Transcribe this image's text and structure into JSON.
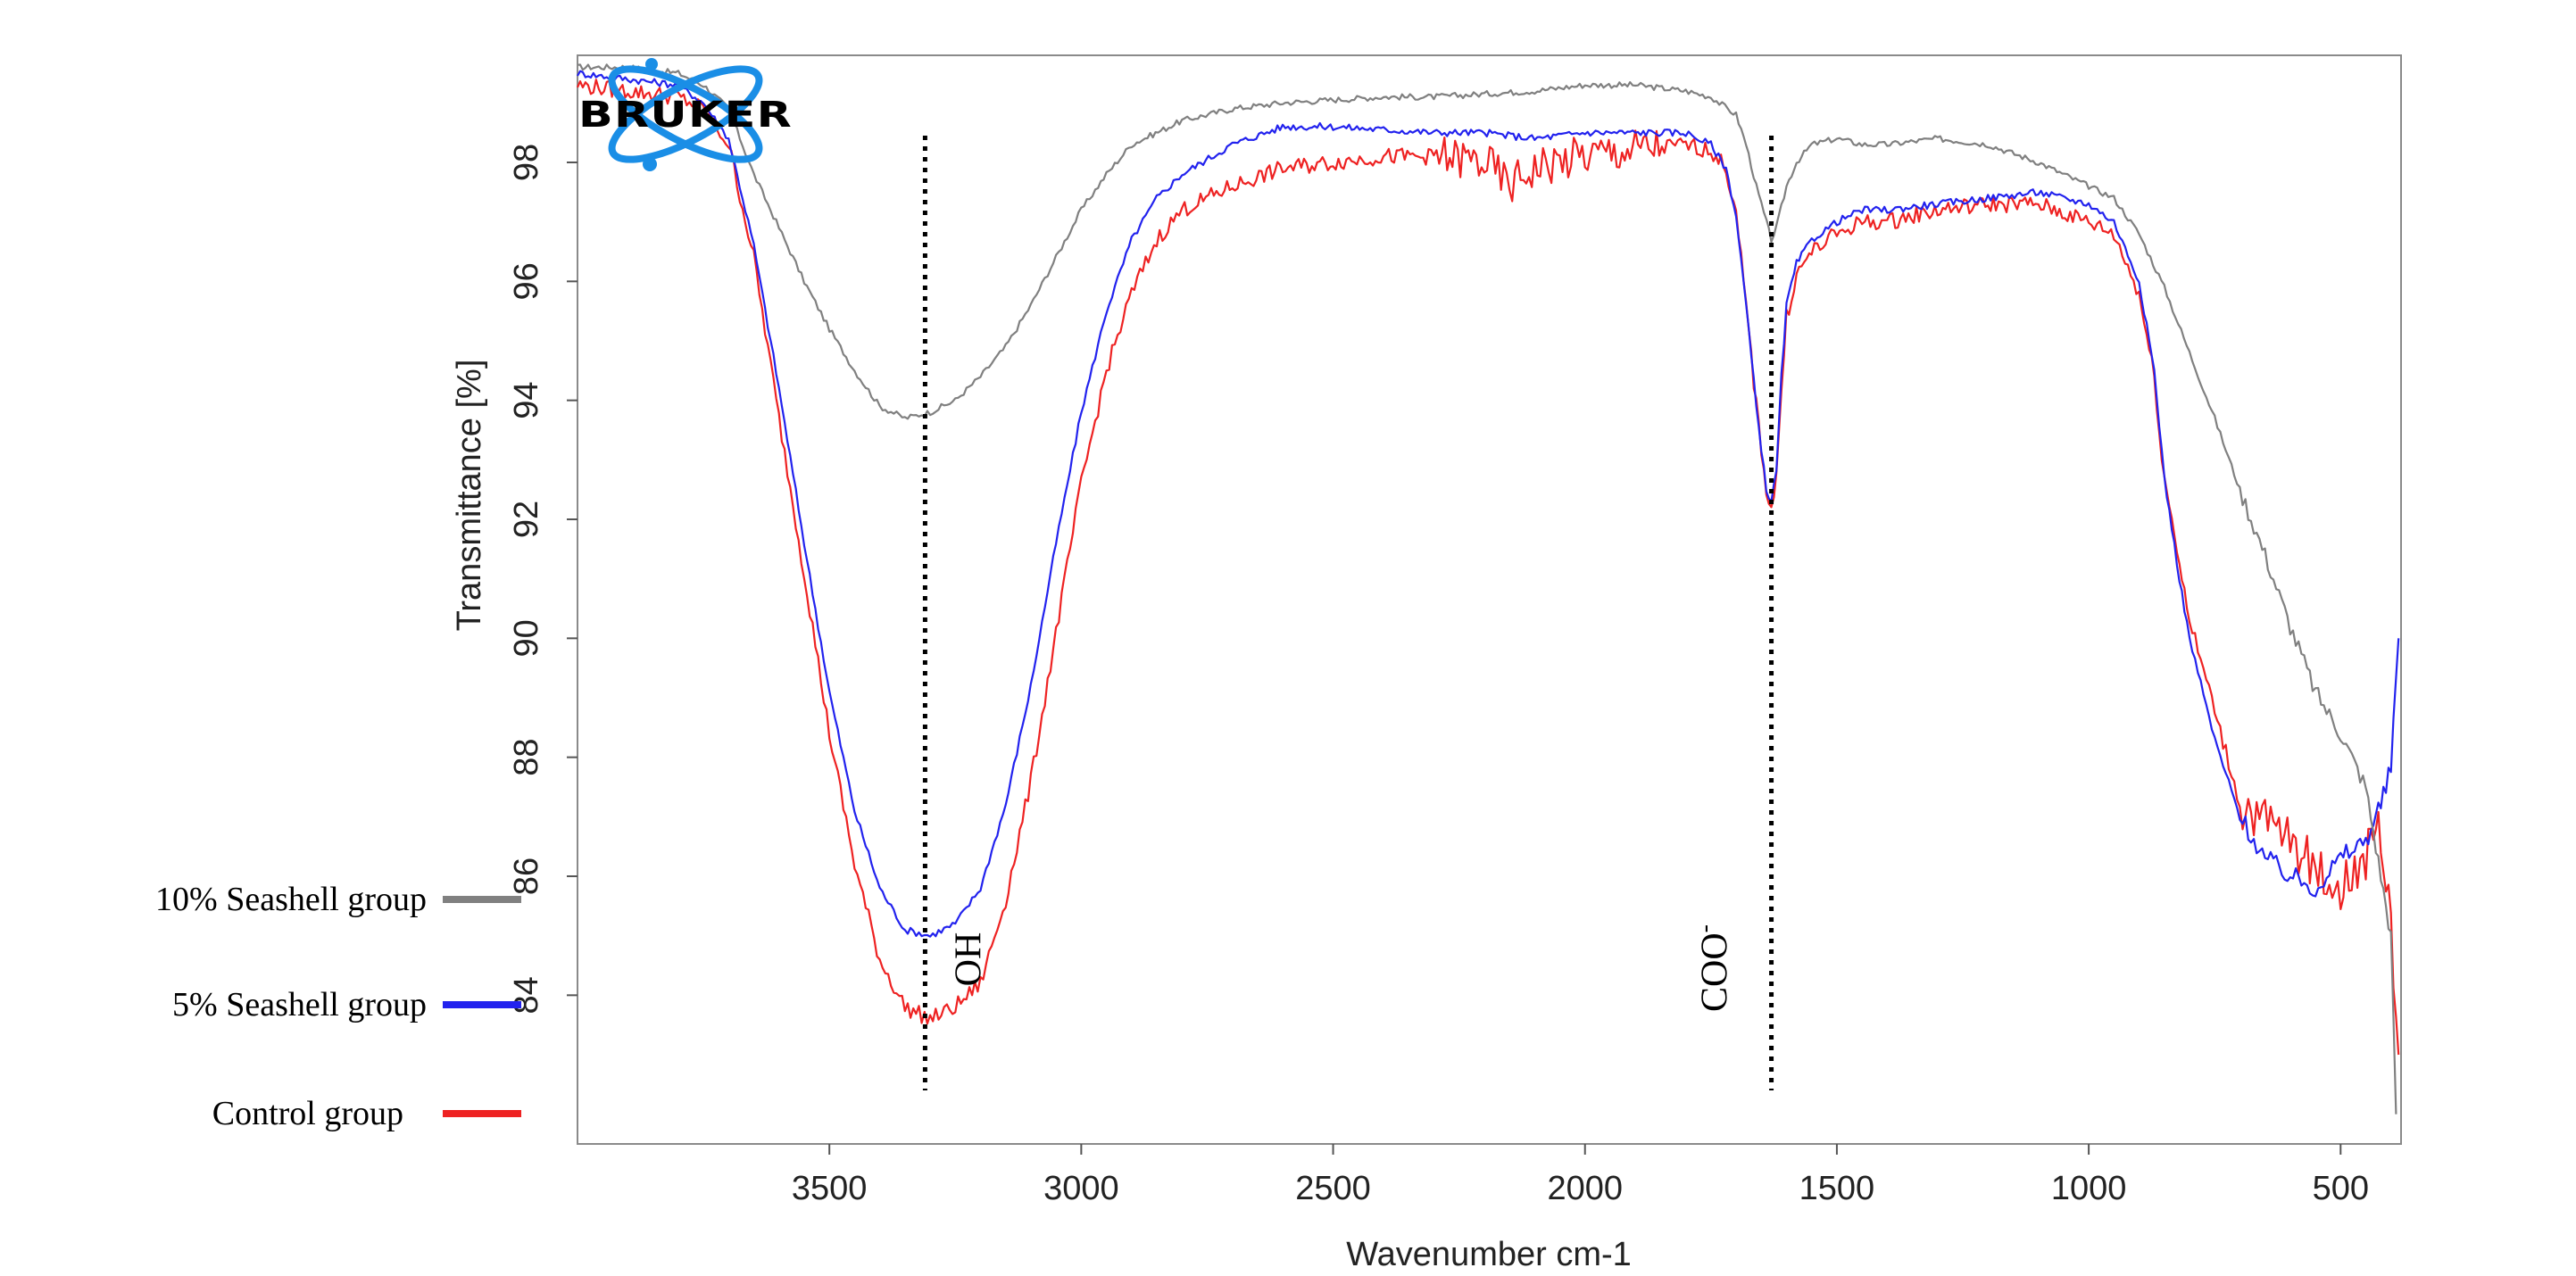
{
  "chart_data": {
    "type": "line",
    "title": "",
    "xlabel": "Wavenumber cm-1",
    "ylabel": "Transmittance [%]",
    "xlim": [
      4000,
      380
    ],
    "ylim": [
      81.5,
      99.8
    ],
    "x_ticks": [
      3500,
      3000,
      2500,
      2000,
      1500,
      1000,
      500
    ],
    "y_ticks": [
      84,
      86,
      88,
      90,
      92,
      94,
      96,
      98
    ],
    "grid": false,
    "logo_text": "BRUKER",
    "annotations": [
      {
        "label": "OH",
        "x": 3310
      },
      {
        "label": "COO",
        "superscript": "-",
        "x": 1630
      }
    ],
    "series": [
      {
        "name": "10% Seashell group",
        "color": "#808080",
        "points": [
          [
            4000,
            99.6
          ],
          [
            3900,
            99.6
          ],
          [
            3800,
            99.5
          ],
          [
            3750,
            99.3
          ],
          [
            3700,
            98.9
          ],
          [
            3650,
            97.8
          ],
          [
            3600,
            96.9
          ],
          [
            3550,
            96.0
          ],
          [
            3500,
            95.2
          ],
          [
            3450,
            94.5
          ],
          [
            3400,
            93.9
          ],
          [
            3350,
            93.7
          ],
          [
            3300,
            93.8
          ],
          [
            3250,
            94.0
          ],
          [
            3200,
            94.4
          ],
          [
            3150,
            94.9
          ],
          [
            3100,
            95.6
          ],
          [
            3050,
            96.4
          ],
          [
            3000,
            97.2
          ],
          [
            2950,
            97.8
          ],
          [
            2900,
            98.3
          ],
          [
            2800,
            98.7
          ],
          [
            2700,
            98.9
          ],
          [
            2600,
            99.0
          ],
          [
            2500,
            99.05
          ],
          [
            2400,
            99.1
          ],
          [
            2300,
            99.1
          ],
          [
            2200,
            99.15
          ],
          [
            2100,
            99.2
          ],
          [
            2000,
            99.3
          ],
          [
            1900,
            99.3
          ],
          [
            1800,
            99.2
          ],
          [
            1750,
            99.1
          ],
          [
            1700,
            98.8
          ],
          [
            1680,
            98.3
          ],
          [
            1660,
            97.6
          ],
          [
            1640,
            97.0
          ],
          [
            1630,
            96.7
          ],
          [
            1620,
            96.9
          ],
          [
            1600,
            97.6
          ],
          [
            1580,
            98.0
          ],
          [
            1550,
            98.3
          ],
          [
            1500,
            98.4
          ],
          [
            1450,
            98.3
          ],
          [
            1400,
            98.3
          ],
          [
            1300,
            98.4
          ],
          [
            1200,
            98.3
          ],
          [
            1100,
            98.0
          ],
          [
            1000,
            97.6
          ],
          [
            950,
            97.4
          ],
          [
            900,
            96.8
          ],
          [
            850,
            95.9
          ],
          [
            800,
            94.8
          ],
          [
            750,
            93.7
          ],
          [
            700,
            92.5
          ],
          [
            650,
            91.4
          ],
          [
            600,
            90.2
          ],
          [
            550,
            89.1
          ],
          [
            500,
            88.4
          ],
          [
            450,
            87.5
          ],
          [
            420,
            86.0
          ],
          [
            400,
            85.0
          ],
          [
            390,
            82.0
          ]
        ]
      },
      {
        "name": "5% Seashell group",
        "color": "#2222ee",
        "points": [
          [
            4000,
            99.5
          ],
          [
            3900,
            99.4
          ],
          [
            3800,
            99.3
          ],
          [
            3750,
            99.0
          ],
          [
            3700,
            98.4
          ],
          [
            3650,
            96.6
          ],
          [
            3600,
            94.2
          ],
          [
            3550,
            91.6
          ],
          [
            3500,
            89.1
          ],
          [
            3450,
            87.1
          ],
          [
            3400,
            85.8
          ],
          [
            3350,
            85.1
          ],
          [
            3300,
            85.0
          ],
          [
            3250,
            85.2
          ],
          [
            3200,
            85.8
          ],
          [
            3150,
            87.2
          ],
          [
            3100,
            89.2
          ],
          [
            3050,
            91.6
          ],
          [
            3000,
            93.8
          ],
          [
            2950,
            95.5
          ],
          [
            2900,
            96.7
          ],
          [
            2850,
            97.4
          ],
          [
            2800,
            97.8
          ],
          [
            2700,
            98.3
          ],
          [
            2600,
            98.6
          ],
          [
            2500,
            98.6
          ],
          [
            2400,
            98.55
          ],
          [
            2300,
            98.5
          ],
          [
            2200,
            98.5
          ],
          [
            2100,
            98.4
          ],
          [
            2000,
            98.5
          ],
          [
            1900,
            98.5
          ],
          [
            1800,
            98.5
          ],
          [
            1750,
            98.3
          ],
          [
            1720,
            97.9
          ],
          [
            1700,
            97.1
          ],
          [
            1680,
            95.6
          ],
          [
            1660,
            93.9
          ],
          [
            1640,
            92.5
          ],
          [
            1630,
            92.3
          ],
          [
            1620,
            92.8
          ],
          [
            1610,
            94.4
          ],
          [
            1600,
            95.6
          ],
          [
            1580,
            96.3
          ],
          [
            1550,
            96.7
          ],
          [
            1500,
            97.0
          ],
          [
            1450,
            97.2
          ],
          [
            1400,
            97.2
          ],
          [
            1300,
            97.3
          ],
          [
            1200,
            97.4
          ],
          [
            1100,
            97.5
          ],
          [
            1000,
            97.3
          ],
          [
            950,
            97.0
          ],
          [
            900,
            96.0
          ],
          [
            870,
            94.5
          ],
          [
            850,
            92.7
          ],
          [
            820,
            91.0
          ],
          [
            800,
            90.0
          ],
          [
            750,
            88.3
          ],
          [
            700,
            87.0
          ],
          [
            650,
            86.3
          ],
          [
            600,
            86.0
          ],
          [
            550,
            85.8
          ],
          [
            500,
            86.3
          ],
          [
            450,
            86.6
          ],
          [
            420,
            87.2
          ],
          [
            400,
            87.8
          ],
          [
            385,
            90.0
          ]
        ]
      },
      {
        "name": "Control group",
        "color": "#ee2222",
        "points": [
          [
            4000,
            99.3
          ],
          [
            3900,
            99.2
          ],
          [
            3800,
            99.1
          ],
          [
            3750,
            98.9
          ],
          [
            3700,
            98.3
          ],
          [
            3650,
            96.4
          ],
          [
            3600,
            93.7
          ],
          [
            3550,
            91.1
          ],
          [
            3500,
            88.4
          ],
          [
            3450,
            86.2
          ],
          [
            3400,
            84.6
          ],
          [
            3350,
            83.8
          ],
          [
            3300,
            83.6
          ],
          [
            3250,
            83.8
          ],
          [
            3200,
            84.2
          ],
          [
            3150,
            85.6
          ],
          [
            3100,
            87.6
          ],
          [
            3050,
            90.1
          ],
          [
            3000,
            92.6
          ],
          [
            2950,
            94.5
          ],
          [
            2900,
            95.8
          ],
          [
            2850,
            96.7
          ],
          [
            2800,
            97.2
          ],
          [
            2700,
            97.6
          ],
          [
            2600,
            97.9
          ],
          [
            2500,
            98.0
          ],
          [
            2400,
            98.1
          ],
          [
            2300,
            98.1
          ],
          [
            2200,
            98.0
          ],
          [
            2150,
            97.6
          ],
          [
            2100,
            97.9
          ],
          [
            2050,
            98.0
          ],
          [
            2000,
            98.1
          ],
          [
            1900,
            98.2
          ],
          [
            1800,
            98.3
          ],
          [
            1750,
            98.2
          ],
          [
            1720,
            97.9
          ],
          [
            1700,
            97.1
          ],
          [
            1680,
            95.6
          ],
          [
            1660,
            93.9
          ],
          [
            1640,
            92.5
          ],
          [
            1630,
            92.2
          ],
          [
            1620,
            92.7
          ],
          [
            1610,
            94.2
          ],
          [
            1600,
            95.4
          ],
          [
            1580,
            96.1
          ],
          [
            1550,
            96.5
          ],
          [
            1500,
            96.8
          ],
          [
            1450,
            97.0
          ],
          [
            1400,
            97.0
          ],
          [
            1300,
            97.2
          ],
          [
            1200,
            97.3
          ],
          [
            1100,
            97.3
          ],
          [
            1000,
            97.0
          ],
          [
            950,
            96.8
          ],
          [
            900,
            95.8
          ],
          [
            870,
            94.4
          ],
          [
            850,
            92.7
          ],
          [
            820,
            91.3
          ],
          [
            800,
            90.3
          ],
          [
            750,
            88.8
          ],
          [
            700,
            87.2
          ],
          [
            650,
            86.9
          ],
          [
            600,
            86.6
          ],
          [
            550,
            86.1
          ],
          [
            500,
            85.8
          ],
          [
            450,
            86.3
          ],
          [
            420,
            86.8
          ],
          [
            400,
            85.2
          ],
          [
            385,
            83.0
          ]
        ]
      }
    ]
  }
}
